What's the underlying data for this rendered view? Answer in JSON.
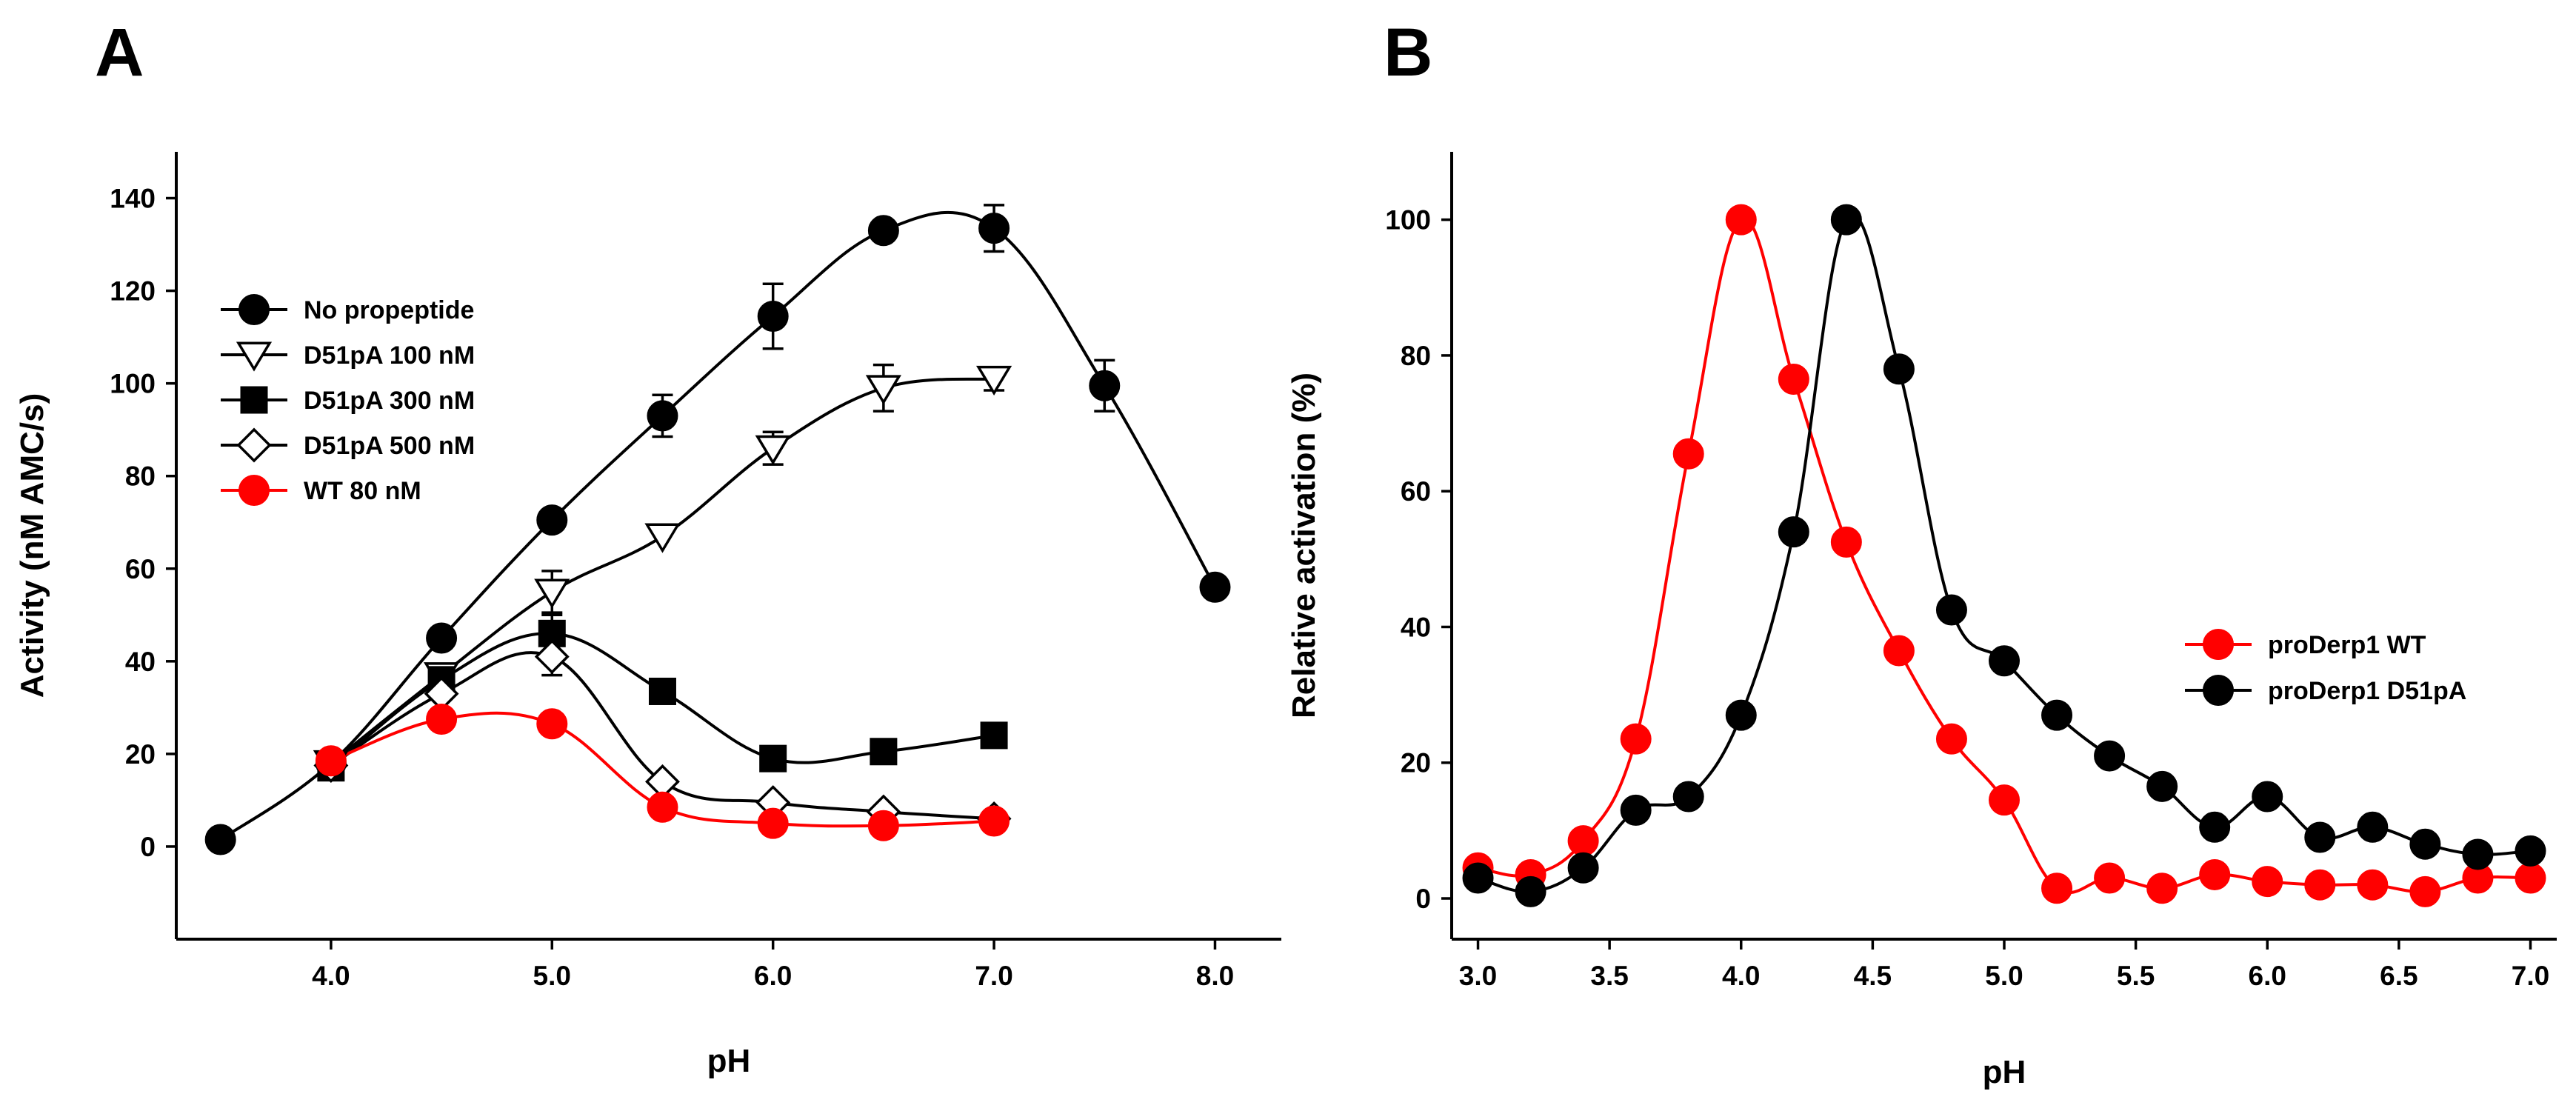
{
  "chart_data": [
    {
      "panel": "A",
      "type": "line",
      "xlabel": "pH",
      "ylabel": "Activity (nM AMC/s)",
      "xlim": [
        3.3,
        8.3
      ],
      "ylim": [
        -20,
        150
      ],
      "xticks": [
        "4.0",
        "5.0",
        "6.0",
        "7.0",
        "8.0"
      ],
      "yticks": [
        "0",
        "20",
        "40",
        "60",
        "80",
        "100",
        "120",
        "140"
      ],
      "legend_position": "top-left",
      "series": [
        {
          "name": "No propeptide",
          "color": "#000000",
          "marker": "circle-filled",
          "x": [
            3.5,
            4.0,
            4.5,
            5.0,
            5.5,
            6.0,
            6.5,
            7.0,
            7.5,
            8.0
          ],
          "values": [
            1.5,
            18,
            45,
            70.5,
            93,
            114.5,
            133,
            133.5,
            99.5,
            56
          ],
          "errors": [
            0,
            0,
            0,
            0,
            4.5,
            7,
            0,
            5,
            5.5,
            0
          ]
        },
        {
          "name": "D51pA 100 nM",
          "color": "#000000",
          "marker": "triangle-down-open",
          "x": [
            4.0,
            4.5,
            5.0,
            5.5,
            6.0,
            6.5,
            7.0
          ],
          "values": [
            18,
            37,
            55,
            67,
            86,
            99,
            101
          ],
          "errors": [
            0,
            0,
            4.5,
            0,
            3.5,
            5,
            2.5
          ]
        },
        {
          "name": "D51pA 300 nM",
          "color": "#000000",
          "marker": "square-filled",
          "x": [
            4.0,
            4.5,
            5.0,
            5.5,
            6.0,
            6.5,
            7.0
          ],
          "values": [
            17,
            36,
            46,
            33.5,
            19,
            20.5,
            24
          ],
          "errors": [
            0,
            0,
            4,
            0,
            0,
            0,
            0
          ]
        },
        {
          "name": "D51pA 500 nM",
          "color": "#000000",
          "marker": "diamond-open",
          "x": [
            4.0,
            4.5,
            5.0,
            5.5,
            6.0,
            6.5,
            7.0
          ],
          "values": [
            17.5,
            33,
            41,
            14,
            9.5,
            7.5,
            6
          ],
          "errors": [
            0,
            0,
            4,
            0,
            0,
            0,
            0
          ]
        },
        {
          "name": "WT 80 nM",
          "color": "#ff0000",
          "marker": "circle-filled",
          "x": [
            4.0,
            4.5,
            5.0,
            5.5,
            6.0,
            6.5,
            7.0
          ],
          "values": [
            18.5,
            27.5,
            26.5,
            8.5,
            5,
            4.5,
            5.5
          ],
          "errors": [
            0,
            0,
            0,
            0,
            0,
            0,
            0
          ]
        }
      ]
    },
    {
      "panel": "B",
      "type": "line",
      "xlabel": "pH",
      "ylabel": "Relative activation (%)",
      "xlim": [
        2.9,
        7.1
      ],
      "ylim": [
        -6,
        110
      ],
      "xticks": [
        "3.0",
        "3.5",
        "4.0",
        "4.5",
        "5.0",
        "5.5",
        "6.0",
        "6.5",
        "7.0"
      ],
      "yticks": [
        "0",
        "20",
        "40",
        "60",
        "80",
        "100"
      ],
      "legend_position": "center-right",
      "series": [
        {
          "name": "proDerp1 WT",
          "color": "#ff0000",
          "marker": "circle-filled",
          "x": [
            3.0,
            3.2,
            3.4,
            3.6,
            3.8,
            4.0,
            4.2,
            4.4,
            4.6,
            4.8,
            5.0,
            5.2,
            5.4,
            5.6,
            5.8,
            6.0,
            6.2,
            6.4,
            6.6,
            6.8,
            7.0
          ],
          "values": [
            4.5,
            3.5,
            8.5,
            23.5,
            65.5,
            100,
            76.5,
            52.5,
            36.5,
            23.5,
            14.5,
            1.5,
            3,
            1.5,
            3.5,
            2.5,
            2,
            2,
            1,
            3,
            3
          ]
        },
        {
          "name": "proDerp1 D51pA",
          "color": "#000000",
          "marker": "circle-filled",
          "x": [
            3.0,
            3.2,
            3.4,
            3.6,
            3.8,
            4.0,
            4.2,
            4.4,
            4.6,
            4.8,
            5.0,
            5.2,
            5.4,
            5.6,
            5.8,
            6.0,
            6.2,
            6.4,
            6.6,
            6.8,
            7.0
          ],
          "values": [
            3,
            1,
            4.5,
            13,
            15,
            27,
            54,
            100,
            78,
            42.5,
            35,
            27,
            21,
            16.5,
            10.5,
            15,
            9,
            10.5,
            8,
            6.5,
            7
          ]
        }
      ]
    }
  ]
}
